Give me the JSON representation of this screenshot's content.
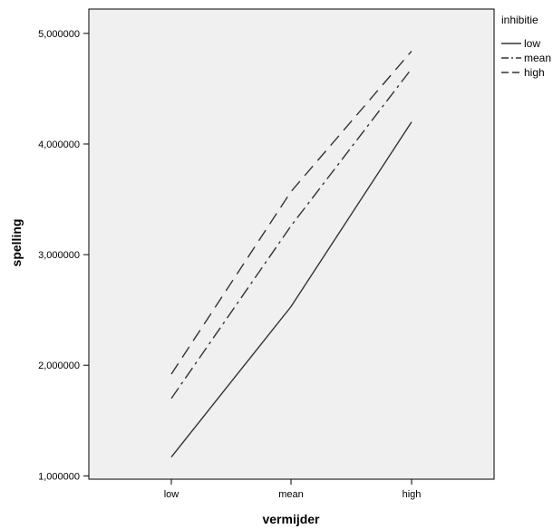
{
  "chart_data": {
    "type": "line",
    "xlabel": "vermijder",
    "ylabel": "spelling",
    "categories": [
      "low",
      "mean",
      "high"
    ],
    "y_ticks": [
      "1,000000",
      "2,000000",
      "3,000000",
      "4,000000",
      "5,000000"
    ],
    "y_tick_values": [
      1,
      2,
      3,
      4,
      5
    ],
    "ylim": [
      0.97,
      5.22
    ],
    "legend": {
      "title": "inhibitie",
      "placement": "right"
    },
    "series": [
      {
        "name": "low",
        "values": [
          1.17,
          2.53,
          4.2
        ],
        "dash": "solid"
      },
      {
        "name": "mean",
        "values": [
          1.7,
          3.26,
          4.68
        ],
        "dash": "dashdot"
      },
      {
        "name": "high",
        "values": [
          1.92,
          3.57,
          4.84
        ],
        "dash": "dashed"
      }
    ],
    "grid": false,
    "colors": {
      "plot_background": "#f0f0f0",
      "line": "#333333",
      "axis": "#000000"
    }
  }
}
